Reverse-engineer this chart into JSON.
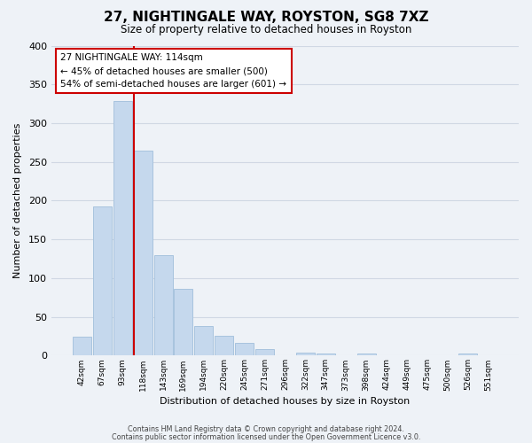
{
  "title": "27, NIGHTINGALE WAY, ROYSTON, SG8 7XZ",
  "subtitle": "Size of property relative to detached houses in Royston",
  "xlabel": "Distribution of detached houses by size in Royston",
  "ylabel": "Number of detached properties",
  "footnote1": "Contains HM Land Registry data © Crown copyright and database right 2024.",
  "footnote2": "Contains public sector information licensed under the Open Government Licence v3.0.",
  "bin_labels": [
    "42sqm",
    "67sqm",
    "93sqm",
    "118sqm",
    "143sqm",
    "169sqm",
    "194sqm",
    "220sqm",
    "245sqm",
    "271sqm",
    "296sqm",
    "322sqm",
    "347sqm",
    "373sqm",
    "398sqm",
    "424sqm",
    "449sqm",
    "475sqm",
    "500sqm",
    "526sqm",
    "551sqm"
  ],
  "bar_values": [
    25,
    193,
    328,
    265,
    130,
    86,
    38,
    26,
    17,
    8,
    0,
    4,
    3,
    0,
    3,
    0,
    0,
    0,
    0,
    3,
    0
  ],
  "bar_color": "#c5d8ed",
  "bar_edge_color": "#a8c4de",
  "vline_color": "#cc0000",
  "vline_pos": 2.575,
  "annotation_title": "27 NIGHTINGALE WAY: 114sqm",
  "annotation_line1": "← 45% of detached houses are smaller (500)",
  "annotation_line2": "54% of semi-detached houses are larger (601) →",
  "annotation_box_color": "#ffffff",
  "annotation_box_edge": "#cc0000",
  "ylim": [
    0,
    400
  ],
  "yticks": [
    0,
    50,
    100,
    150,
    200,
    250,
    300,
    350,
    400
  ],
  "grid_color": "#d0d8e4",
  "background_color": "#eef2f7"
}
